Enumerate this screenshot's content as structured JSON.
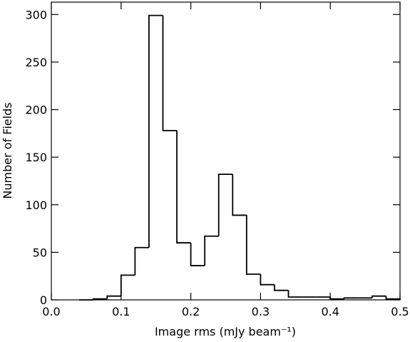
{
  "chart_data": {
    "type": "histogram",
    "xlabel": "Image rms (mJy beam⁻¹)",
    "ylabel": "Number of Fields",
    "bins": [
      0.04,
      0.06,
      0.08,
      0.1,
      0.12,
      0.14,
      0.16,
      0.18,
      0.2,
      0.22,
      0.24,
      0.26,
      0.28,
      0.3,
      0.32,
      0.34,
      0.36,
      0.38,
      0.4,
      0.42,
      0.44,
      0.46,
      0.48,
      0.5
    ],
    "values": [
      0,
      1,
      4,
      26,
      55,
      299,
      178,
      60,
      36,
      67,
      132,
      89,
      27,
      16,
      10,
      3,
      3,
      3,
      1,
      2,
      2,
      4,
      1
    ],
    "color": "#000000",
    "xlim": [
      0,
      0.5
    ],
    "xticks": [
      {
        "value": 0,
        "label": "0.0"
      },
      0.1,
      0.2,
      0.3,
      0.4,
      0.5
    ],
    "ylim": [
      0,
      313
    ],
    "yticks": [
      0,
      50,
      100,
      150,
      200,
      250,
      300
    ]
  }
}
